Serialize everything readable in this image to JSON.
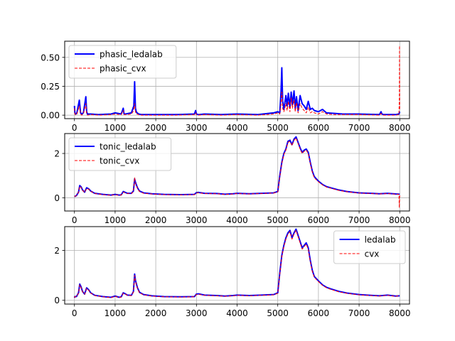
{
  "colors": {
    "ledalab": "#0000ff",
    "cvx": "#ff0000",
    "grid": "#b0b0b0"
  },
  "chart_data": [
    {
      "type": "line",
      "title": "",
      "xlabel": "",
      "ylabel": "",
      "xlim": [
        -240,
        8240
      ],
      "ylim": [
        -0.03,
        0.64
      ],
      "xticks": [
        0,
        1000,
        2000,
        3000,
        4000,
        5000,
        6000,
        7000,
        8000
      ],
      "yticks": [
        0.0,
        0.25,
        0.5
      ],
      "ytick_labels": [
        "0.00",
        "0.25",
        "0.50"
      ],
      "grid": true,
      "legend": "upper left",
      "series": [
        {
          "name": "phasic_ledalab",
          "color": "#0000ff",
          "style": "solid",
          "x": [
            0,
            10,
            30,
            60,
            120,
            150,
            180,
            220,
            280,
            300,
            320,
            400,
            600,
            900,
            1000,
            1150,
            1200,
            1220,
            1250,
            1400,
            1440,
            1460,
            1480,
            1500,
            1520,
            1540,
            1580,
            1650,
            2000,
            2500,
            2950,
            2980,
            3000,
            3050,
            3200,
            3600,
            4000,
            4500,
            4900,
            5000,
            5050,
            5080,
            5100,
            5120,
            5150,
            5200,
            5230,
            5260,
            5300,
            5330,
            5360,
            5400,
            5430,
            5460,
            5500,
            5550,
            5600,
            5650,
            5700,
            5750,
            5800,
            5850,
            5900,
            6000,
            6100,
            6200,
            6400,
            6600,
            7000,
            7500,
            7540,
            7560,
            7600,
            7900,
            7980,
            8000
          ],
          "y": [
            0.08,
            0.02,
            0.01,
            0.02,
            0.13,
            0.02,
            0.01,
            0.02,
            0.16,
            0.03,
            0.01,
            0.01,
            0.005,
            0.01,
            0.02,
            0.01,
            0.06,
            0.01,
            0.01,
            0.02,
            0.06,
            0.08,
            0.29,
            0.06,
            0.03,
            0.02,
            0.01,
            0.005,
            0.005,
            0.005,
            0.01,
            0.04,
            0.01,
            0.005,
            0.01,
            0.005,
            0.01,
            0.005,
            0.02,
            0.03,
            0.02,
            0.2,
            0.41,
            0.12,
            0.05,
            0.17,
            0.08,
            0.19,
            0.07,
            0.2,
            0.09,
            0.21,
            0.06,
            0.16,
            0.04,
            0.17,
            0.1,
            0.08,
            0.05,
            0.12,
            0.05,
            0.06,
            0.04,
            0.03,
            0.05,
            0.02,
            0.015,
            0.01,
            0.01,
            0.005,
            0.03,
            0.01,
            0.005,
            0.005,
            0.01,
            0.03
          ]
        },
        {
          "name": "phasic_cvx",
          "color": "#ff0000",
          "style": "dashed",
          "x": [
            0,
            10,
            30,
            60,
            120,
            150,
            180,
            220,
            280,
            300,
            320,
            400,
            600,
            900,
            1000,
            1150,
            1200,
            1220,
            1250,
            1400,
            1440,
            1460,
            1480,
            1500,
            1520,
            1540,
            1580,
            1650,
            2000,
            2500,
            2950,
            2980,
            3000,
            3050,
            3200,
            3600,
            4000,
            4500,
            4900,
            5000,
            5050,
            5080,
            5100,
            5120,
            5150,
            5200,
            5230,
            5260,
            5300,
            5330,
            5360,
            5400,
            5430,
            5460,
            5500,
            5550,
            5600,
            5650,
            5700,
            5750,
            5800,
            5850,
            5900,
            6000,
            6100,
            6200,
            6400,
            6600,
            7000,
            7500,
            7540,
            7560,
            7600,
            7900,
            7980,
            7990,
            7995,
            8000
          ],
          "y": [
            0.06,
            0.01,
            0.0,
            0.01,
            0.08,
            0.01,
            0.0,
            0.01,
            0.1,
            0.01,
            0.0,
            0.005,
            0.0,
            0.005,
            0.01,
            0.005,
            0.04,
            0.005,
            0.005,
            0.01,
            0.03,
            0.05,
            0.1,
            0.03,
            0.01,
            0.01,
            0.005,
            0.0,
            0.0,
            0.0,
            0.005,
            0.02,
            0.005,
            0.0,
            0.005,
            0.0,
            0.005,
            0.0,
            0.01,
            0.02,
            0.01,
            0.1,
            0.2,
            0.06,
            0.03,
            0.1,
            0.04,
            0.12,
            0.03,
            0.15,
            0.06,
            0.13,
            0.03,
            0.11,
            0.02,
            0.1,
            0.06,
            0.04,
            0.02,
            0.07,
            0.02,
            0.03,
            0.02,
            0.01,
            0.03,
            0.01,
            0.005,
            0.005,
            0.005,
            0.0,
            0.015,
            0.005,
            0.0,
            0.0,
            0.005,
            0.15,
            0.6,
            0.05
          ]
        }
      ]
    },
    {
      "type": "line",
      "title": "",
      "xlabel": "",
      "ylabel": "",
      "xlim": [
        -240,
        8240
      ],
      "ylim": [
        -0.6,
        2.9
      ],
      "xticks": [
        0,
        1000,
        2000,
        3000,
        4000,
        5000,
        6000,
        7000,
        8000
      ],
      "yticks": [
        0,
        2
      ],
      "ytick_labels": [
        "0",
        "2"
      ],
      "grid": true,
      "legend": "upper left",
      "series": [
        {
          "name": "tonic_ledalab",
          "color": "#0000ff",
          "style": "solid",
          "x": [
            0,
            50,
            100,
            130,
            160,
            200,
            250,
            300,
            350,
            400,
            500,
            700,
            900,
            1000,
            1100,
            1150,
            1200,
            1250,
            1300,
            1400,
            1450,
            1480,
            1500,
            1550,
            1600,
            1700,
            1900,
            2200,
            2600,
            2950,
            3000,
            3050,
            3200,
            3500,
            3700,
            3900,
            4000,
            4300,
            4600,
            4900,
            5000,
            5050,
            5100,
            5150,
            5200,
            5250,
            5300,
            5350,
            5400,
            5450,
            5500,
            5550,
            5600,
            5650,
            5700,
            5750,
            5800,
            5850,
            5900,
            6000,
            6100,
            6200,
            6300,
            6500,
            6700,
            7000,
            7300,
            7500,
            7700,
            7900,
            8000
          ],
          "y": [
            0.05,
            0.1,
            0.25,
            0.55,
            0.5,
            0.35,
            0.25,
            0.45,
            0.4,
            0.3,
            0.2,
            0.15,
            0.12,
            0.15,
            0.12,
            0.13,
            0.28,
            0.24,
            0.2,
            0.2,
            0.3,
            0.85,
            0.7,
            0.45,
            0.3,
            0.22,
            0.18,
            0.15,
            0.14,
            0.15,
            0.23,
            0.24,
            0.2,
            0.19,
            0.16,
            0.18,
            0.2,
            0.18,
            0.2,
            0.22,
            0.28,
            1.0,
            1.6,
            2.0,
            2.2,
            2.55,
            2.6,
            2.4,
            2.65,
            2.75,
            2.5,
            2.25,
            2.05,
            2.15,
            2.2,
            2.05,
            1.6,
            1.2,
            0.95,
            0.75,
            0.6,
            0.5,
            0.45,
            0.35,
            0.28,
            0.22,
            0.2,
            0.18,
            0.2,
            0.17,
            0.16
          ]
        },
        {
          "name": "tonic_cvx",
          "color": "#ff0000",
          "style": "dashed",
          "x": [
            0,
            50,
            100,
            130,
            160,
            200,
            250,
            300,
            350,
            400,
            500,
            700,
            900,
            1000,
            1100,
            1150,
            1200,
            1250,
            1300,
            1400,
            1450,
            1480,
            1500,
            1550,
            1600,
            1700,
            1900,
            2200,
            2600,
            2950,
            3000,
            3050,
            3200,
            3500,
            3700,
            3900,
            4000,
            4300,
            4600,
            4900,
            5000,
            5050,
            5100,
            5150,
            5200,
            5250,
            5300,
            5350,
            5400,
            5450,
            5500,
            5550,
            5600,
            5650,
            5700,
            5750,
            5800,
            5850,
            5900,
            6000,
            6100,
            6200,
            6300,
            6500,
            6700,
            7000,
            7300,
            7500,
            7700,
            7900,
            7980,
            7990,
            8000
          ],
          "y": [
            0.05,
            0.1,
            0.25,
            0.52,
            0.47,
            0.33,
            0.24,
            0.42,
            0.38,
            0.29,
            0.19,
            0.14,
            0.11,
            0.14,
            0.11,
            0.12,
            0.25,
            0.22,
            0.19,
            0.19,
            0.28,
            0.9,
            0.65,
            0.42,
            0.28,
            0.2,
            0.17,
            0.14,
            0.13,
            0.14,
            0.21,
            0.22,
            0.19,
            0.18,
            0.15,
            0.17,
            0.19,
            0.17,
            0.19,
            0.21,
            0.26,
            0.95,
            1.55,
            1.95,
            2.15,
            2.5,
            2.55,
            2.35,
            2.6,
            2.7,
            2.45,
            2.2,
            2.0,
            2.1,
            2.15,
            2.0,
            1.55,
            1.15,
            0.9,
            0.72,
            0.58,
            0.48,
            0.43,
            0.33,
            0.27,
            0.21,
            0.19,
            0.17,
            0.19,
            0.16,
            0.15,
            -0.45,
            0.1
          ]
        }
      ]
    },
    {
      "type": "line",
      "title": "",
      "xlabel": "",
      "ylabel": "",
      "xlim": [
        -240,
        8240
      ],
      "ylim": [
        -0.15,
        2.95
      ],
      "xticks": [
        0,
        1000,
        2000,
        3000,
        4000,
        5000,
        6000,
        7000,
        8000
      ],
      "yticks": [
        0,
        2
      ],
      "ytick_labels": [
        "0",
        "2"
      ],
      "grid": true,
      "legend": "upper right",
      "series": [
        {
          "name": "ledalab",
          "color": "#0000ff",
          "style": "solid",
          "x": [
            0,
            10,
            50,
            100,
            130,
            160,
            200,
            250,
            300,
            350,
            400,
            500,
            700,
            900,
            1000,
            1100,
            1150,
            1200,
            1250,
            1300,
            1400,
            1450,
            1480,
            1500,
            1550,
            1600,
            1700,
            1900,
            2200,
            2600,
            2950,
            3000,
            3050,
            3200,
            3500,
            3700,
            3900,
            4000,
            4300,
            4600,
            4900,
            5000,
            5050,
            5100,
            5150,
            5200,
            5250,
            5300,
            5350,
            5400,
            5450,
            5500,
            5550,
            5600,
            5650,
            5700,
            5750,
            5800,
            5850,
            5900,
            6000,
            6100,
            6200,
            6300,
            6500,
            6700,
            7000,
            7300,
            7500,
            7700,
            7900,
            8000
          ],
          "y": [
            0.1,
            0.15,
            0.15,
            0.3,
            0.65,
            0.55,
            0.35,
            0.25,
            0.5,
            0.42,
            0.3,
            0.2,
            0.15,
            0.12,
            0.17,
            0.12,
            0.14,
            0.3,
            0.26,
            0.21,
            0.2,
            0.35,
            1.05,
            0.8,
            0.5,
            0.32,
            0.23,
            0.18,
            0.15,
            0.14,
            0.15,
            0.25,
            0.26,
            0.21,
            0.19,
            0.17,
            0.19,
            0.21,
            0.19,
            0.21,
            0.23,
            0.3,
            1.1,
            1.8,
            2.2,
            2.5,
            2.7,
            2.8,
            2.5,
            2.7,
            2.85,
            2.6,
            2.35,
            2.1,
            2.2,
            2.3,
            2.1,
            1.6,
            1.2,
            0.95,
            0.78,
            0.62,
            0.52,
            0.46,
            0.36,
            0.29,
            0.23,
            0.2,
            0.18,
            0.21,
            0.17,
            0.18
          ]
        },
        {
          "name": "cvx",
          "color": "#ff0000",
          "style": "dashed",
          "x": [
            0,
            10,
            50,
            100,
            130,
            160,
            200,
            250,
            300,
            350,
            400,
            500,
            700,
            900,
            1000,
            1100,
            1150,
            1200,
            1250,
            1300,
            1400,
            1450,
            1480,
            1500,
            1550,
            1600,
            1700,
            1900,
            2200,
            2600,
            2950,
            3000,
            3050,
            3200,
            3500,
            3700,
            3900,
            4000,
            4300,
            4600,
            4900,
            5000,
            5050,
            5100,
            5150,
            5200,
            5250,
            5300,
            5350,
            5400,
            5450,
            5500,
            5550,
            5600,
            5650,
            5700,
            5750,
            5800,
            5850,
            5900,
            6000,
            6100,
            6200,
            6300,
            6500,
            6700,
            7000,
            7300,
            7500,
            7700,
            7900,
            8000
          ],
          "y": [
            0.1,
            0.15,
            0.15,
            0.29,
            0.62,
            0.52,
            0.34,
            0.24,
            0.48,
            0.4,
            0.29,
            0.19,
            0.14,
            0.11,
            0.16,
            0.11,
            0.13,
            0.28,
            0.25,
            0.2,
            0.19,
            0.33,
            1.0,
            0.76,
            0.48,
            0.3,
            0.22,
            0.17,
            0.14,
            0.13,
            0.14,
            0.23,
            0.24,
            0.2,
            0.18,
            0.16,
            0.18,
            0.2,
            0.18,
            0.2,
            0.22,
            0.28,
            1.05,
            1.75,
            2.15,
            2.45,
            2.65,
            2.75,
            2.45,
            2.65,
            2.8,
            2.55,
            2.3,
            2.05,
            2.15,
            2.25,
            2.05,
            1.55,
            1.15,
            0.92,
            0.75,
            0.6,
            0.5,
            0.44,
            0.34,
            0.28,
            0.22,
            0.19,
            0.17,
            0.2,
            0.16,
            0.2
          ]
        }
      ]
    }
  ]
}
